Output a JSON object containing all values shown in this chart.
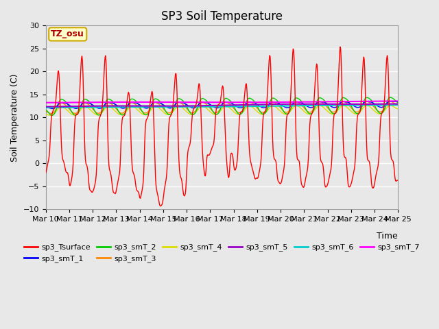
{
  "title": "SP3 Soil Temperature",
  "xlabel": "Time",
  "ylabel": "Soil Temperature (C)",
  "ylim": [
    -10,
    30
  ],
  "x_tick_labels": [
    "Mar 10",
    "Mar 11",
    "Mar 12",
    "Mar 13",
    "Mar 14",
    "Mar 15",
    "Mar 16",
    "Mar 17",
    "Mar 18",
    "Mar 19",
    "Mar 20",
    "Mar 21",
    "Mar 22",
    "Mar 23",
    "Mar 24",
    "Mar 25"
  ],
  "annotation_text": "TZ_osu",
  "annotation_color": "#aa0000",
  "annotation_bg": "#ffffcc",
  "annotation_edge": "#ccaa00",
  "plot_bg": "#e8e8e8",
  "series_colors": {
    "sp3_Tsurface": "#ff0000",
    "sp3_smT_1": "#0000ff",
    "sp3_smT_2": "#00cc00",
    "sp3_smT_3": "#ff8800",
    "sp3_smT_4": "#dddd00",
    "sp3_smT_5": "#9900cc",
    "sp3_smT_6": "#00cccc",
    "sp3_smT_7": "#ff00ff"
  },
  "legend_entries": [
    "sp3_Tsurface",
    "sp3_smT_1",
    "sp3_smT_2",
    "sp3_smT_3",
    "sp3_smT_4",
    "sp3_smT_5",
    "sp3_smT_6",
    "sp3_smT_7"
  ],
  "yticks": [
    -10,
    -5,
    0,
    5,
    10,
    15,
    20,
    25,
    30
  ],
  "grid_color": "#ffffff",
  "title_fontsize": 12,
  "axis_fontsize": 9,
  "tick_fontsize": 8,
  "legend_fontsize": 8
}
